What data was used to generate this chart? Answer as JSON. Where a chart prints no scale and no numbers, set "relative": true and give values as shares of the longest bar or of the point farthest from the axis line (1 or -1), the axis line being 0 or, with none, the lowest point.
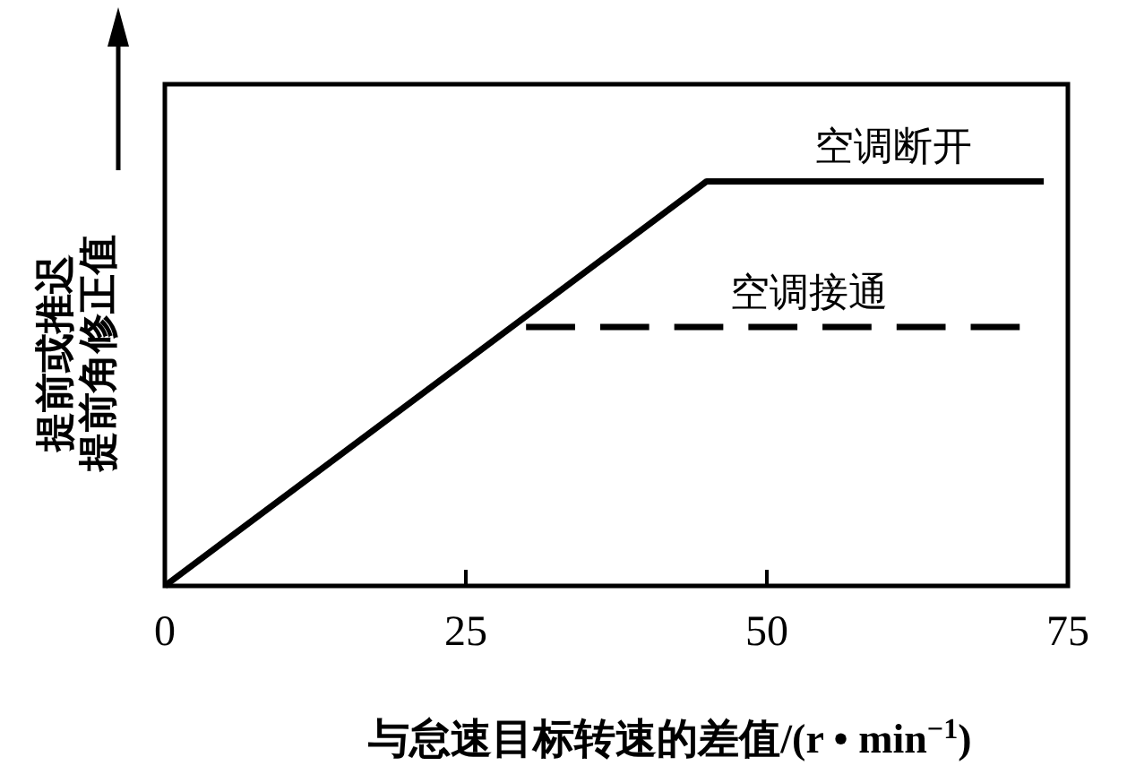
{
  "chart_data": {
    "type": "line",
    "relative": true,
    "xlabel": "与怠速目标转速的差值/(r • min$^{−1}$)",
    "ylabel": "提前或推迟提前角修正值",
    "xlim": [
      0,
      75
    ],
    "xticks": [
      0,
      25,
      50,
      75
    ],
    "grid": false,
    "legend": false,
    "marker": "none",
    "series": [
      {
        "name": "空调断开",
        "color": "#000000",
        "line_style": "solid",
        "x": [
          0,
          45,
          73
        ],
        "values": [
          0,
          1,
          1
        ]
      },
      {
        "name": "空调接通",
        "color": "#000000",
        "line_style": "dashed",
        "x": [
          30,
          71
        ],
        "values": [
          0.64,
          0.64
        ]
      }
    ]
  }
}
